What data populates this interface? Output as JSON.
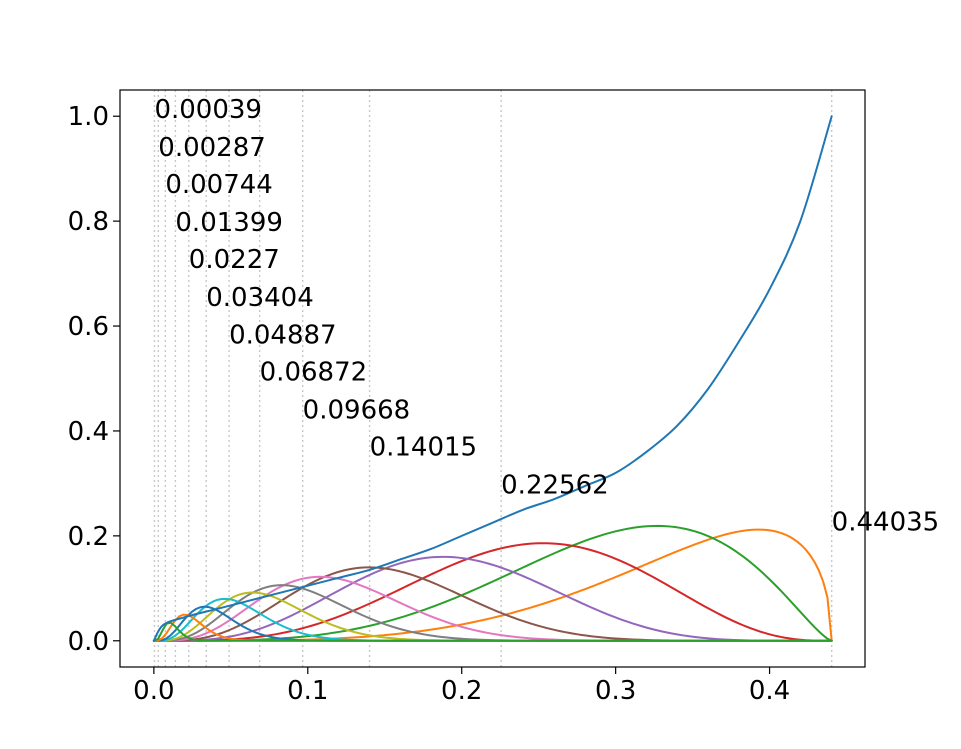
{
  "chart_data": {
    "type": "line",
    "title": "",
    "xlabel": "",
    "ylabel": "",
    "xlim": [
      -0.022,
      0.462
    ],
    "ylim": [
      -0.05,
      1.05
    ],
    "grid": false,
    "x_ticks": [
      0.0,
      0.1,
      0.2,
      0.3,
      0.4
    ],
    "x_tick_labels": [
      "0.0",
      "0.1",
      "0.2",
      "0.3",
      "0.4"
    ],
    "y_ticks": [
      0.0,
      0.2,
      0.4,
      0.6,
      0.8,
      1.0
    ],
    "y_tick_labels": [
      "0.0",
      "0.2",
      "0.4",
      "0.6",
      "0.8",
      "1.0"
    ],
    "x_max": 0.44035,
    "vertical_lines": [
      0.00039,
      0.00287,
      0.00744,
      0.01399,
      0.0227,
      0.03404,
      0.04887,
      0.06872,
      0.09668,
      0.14015,
      0.22562,
      0.44035
    ],
    "vertical_line_style": "dotted",
    "annotations": [
      {
        "text": "0.00039",
        "x": 0.00039,
        "y": 1.0
      },
      {
        "text": "0.00287",
        "x": 0.00287,
        "y": 0.928
      },
      {
        "text": "0.00744",
        "x": 0.00744,
        "y": 0.857
      },
      {
        "text": "0.01399",
        "x": 0.01399,
        "y": 0.785
      },
      {
        "text": "0.0227",
        "x": 0.0227,
        "y": 0.714
      },
      {
        "text": "0.03404",
        "x": 0.03404,
        "y": 0.642
      },
      {
        "text": "0.04887",
        "x": 0.04887,
        "y": 0.571
      },
      {
        "text": "0.06872",
        "x": 0.06872,
        "y": 0.5
      },
      {
        "text": "0.09668",
        "x": 0.09668,
        "y": 0.428
      },
      {
        "text": "0.14015",
        "x": 0.14015,
        "y": 0.357
      },
      {
        "text": "0.22562",
        "x": 0.22562,
        "y": 0.285
      },
      {
        "text": "0.44035",
        "x": 0.44035,
        "y": 0.214
      }
    ],
    "series": [
      {
        "color": "#1f77b4",
        "peak_x": 0.44035,
        "peak_y": 1.0,
        "points": [
          [
            0.0,
            0.0
          ],
          [
            0.006,
            0.03
          ],
          [
            0.02,
            0.045
          ],
          [
            0.04,
            0.06
          ],
          [
            0.06,
            0.075
          ],
          [
            0.08,
            0.09
          ],
          [
            0.1,
            0.105
          ],
          [
            0.12,
            0.12
          ],
          [
            0.14,
            0.135
          ],
          [
            0.16,
            0.155
          ],
          [
            0.18,
            0.175
          ],
          [
            0.2,
            0.2
          ],
          [
            0.22,
            0.225
          ],
          [
            0.24,
            0.25
          ],
          [
            0.26,
            0.27
          ],
          [
            0.28,
            0.295
          ],
          [
            0.3,
            0.32
          ],
          [
            0.32,
            0.36
          ],
          [
            0.34,
            0.41
          ],
          [
            0.36,
            0.48
          ],
          [
            0.38,
            0.57
          ],
          [
            0.4,
            0.67
          ],
          [
            0.42,
            0.8
          ],
          [
            0.44035,
            1.0
          ]
        ]
      },
      {
        "color": "#ff7f0e",
        "peak_x": 0.393,
        "peak_y": 0.212
      },
      {
        "color": "#2ca02c",
        "peak_x": 0.327,
        "peak_y": 0.219
      },
      {
        "color": "#d62728",
        "peak_x": 0.253,
        "peak_y": 0.186
      },
      {
        "color": "#9467bd",
        "peak_x": 0.188,
        "peak_y": 0.16
      },
      {
        "color": "#8c564b",
        "peak_x": 0.14,
        "peak_y": 0.14
      },
      {
        "color": "#e377c2",
        "peak_x": 0.108,
        "peak_y": 0.122
      },
      {
        "color": "#7f7f7f",
        "peak_x": 0.083,
        "peak_y": 0.106
      },
      {
        "color": "#bcbd22",
        "peak_x": 0.064,
        "peak_y": 0.092
      },
      {
        "color": "#17becf",
        "peak_x": 0.046,
        "peak_y": 0.08
      },
      {
        "color": "#1f77b4",
        "peak_x": 0.033,
        "peak_y": 0.065
      },
      {
        "color": "#ff7f0e",
        "peak_x": 0.02,
        "peak_y": 0.05
      },
      {
        "color": "#2ca02c",
        "peak_x": 0.01,
        "peak_y": 0.035
      }
    ]
  }
}
